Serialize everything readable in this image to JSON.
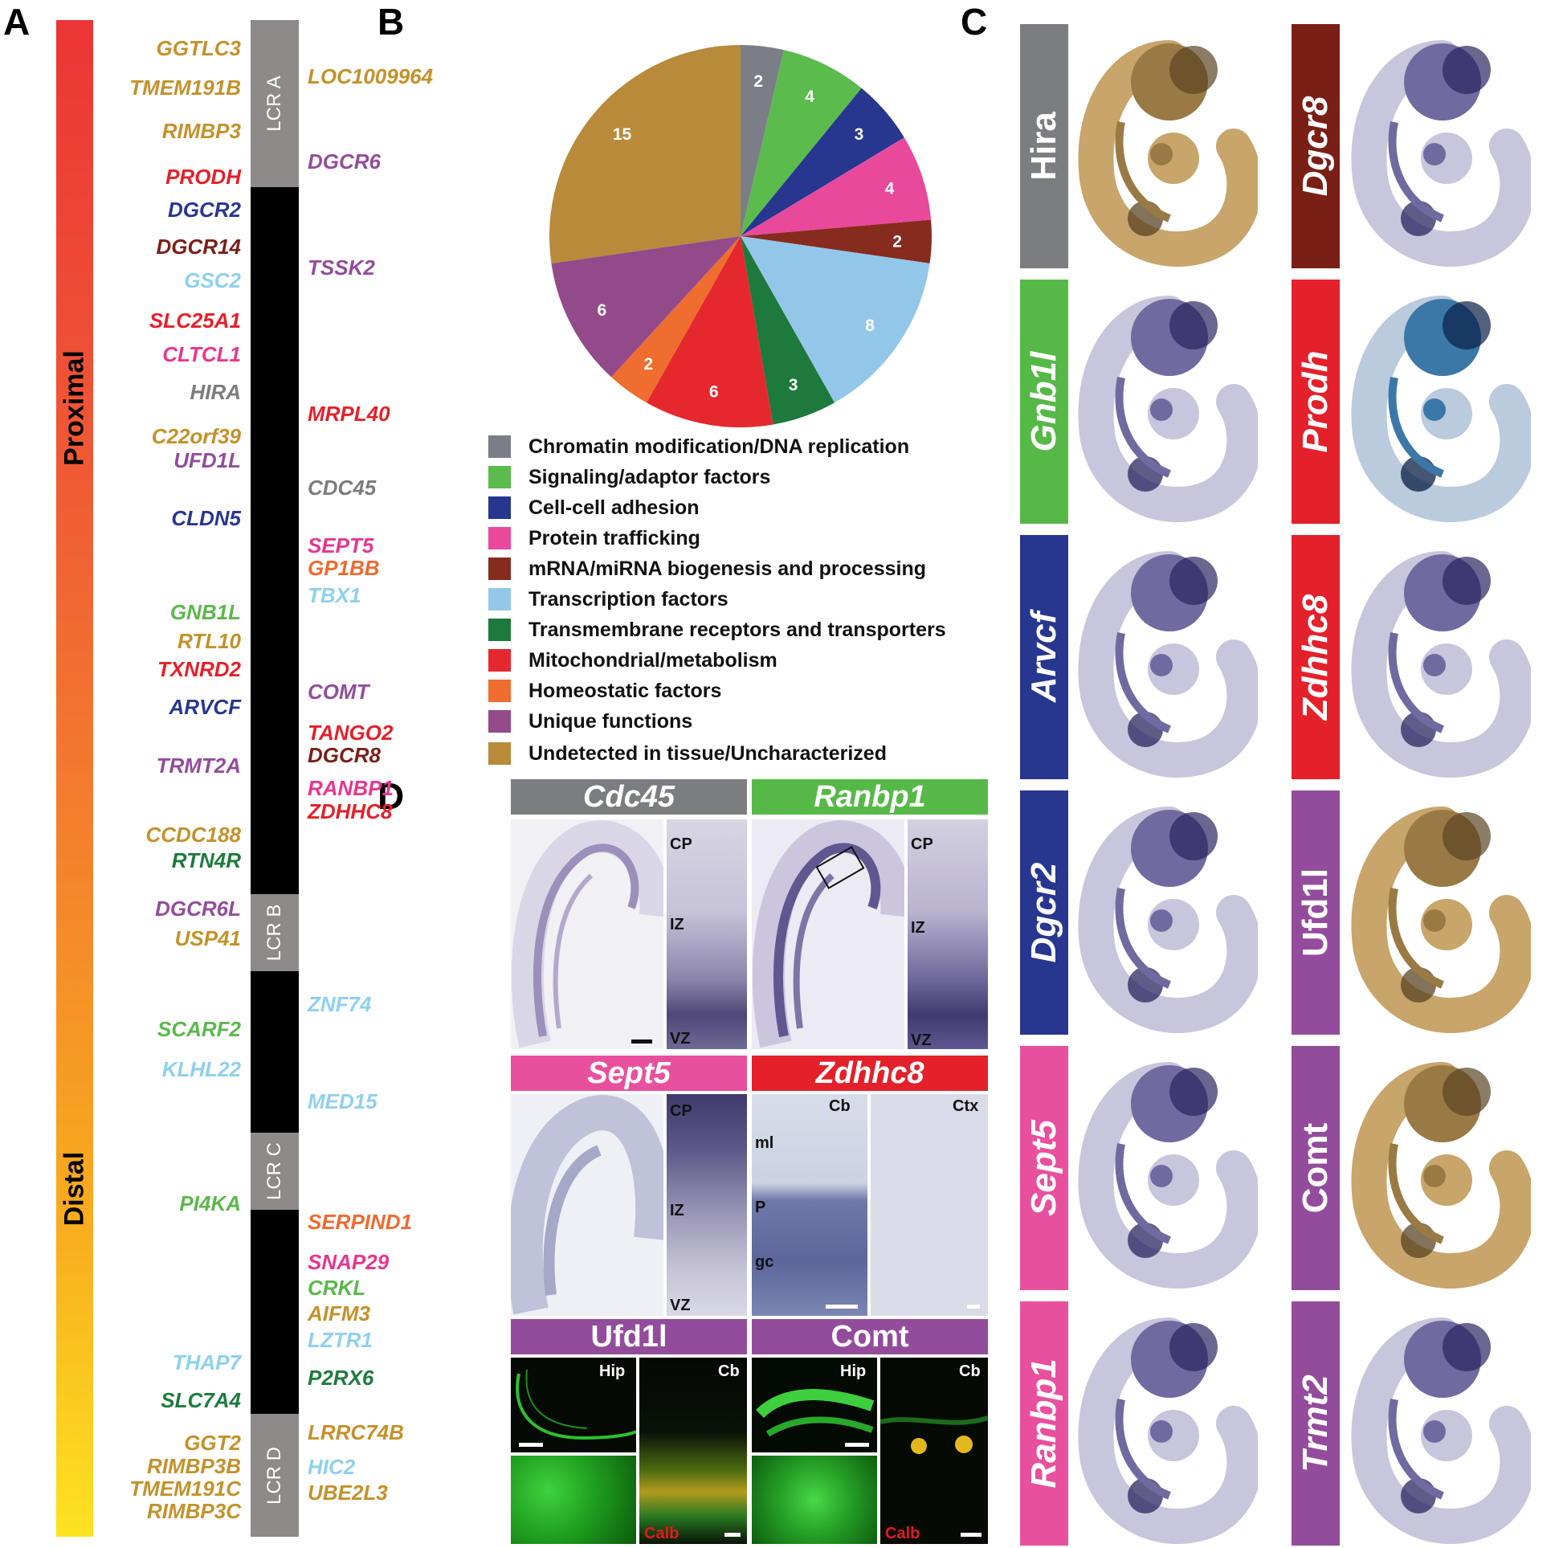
{
  "panels": {
    "a": "A",
    "b": "B",
    "c": "C",
    "d": "D"
  },
  "panel_a": {
    "gradient_top_label": "Proximal",
    "gradient_bottom_label": "Distal",
    "lcr": [
      "LCR A",
      "LCR B",
      "LCR C",
      "LCR D"
    ],
    "left_genes": [
      {
        "name": "GGTLC3",
        "color": "#c4912a"
      },
      {
        "name": "TMEM191B",
        "color": "#c4912a"
      },
      {
        "name": "RIMBP3",
        "color": "#c4912a"
      },
      {
        "name": "PRODH",
        "color": "#e4202a"
      },
      {
        "name": "DGCR2",
        "color": "#27368f"
      },
      {
        "name": "DGCR14",
        "color": "#7a1f16"
      },
      {
        "name": "GSC2",
        "color": "#8ed0ee"
      },
      {
        "name": "SLC25A1",
        "color": "#e4202a"
      },
      {
        "name": "CLTCL1",
        "color": "#e8358f"
      },
      {
        "name": "HIRA",
        "color": "#7c7c7c"
      },
      {
        "name": "C22orf39",
        "color": "#c4912a"
      },
      {
        "name": "UFD1L",
        "color": "#934c9c"
      },
      {
        "name": "CLDN5",
        "color": "#27368f"
      },
      {
        "name": "GNB1L",
        "color": "#5ab84b"
      },
      {
        "name": "RTL10",
        "color": "#c4912a"
      },
      {
        "name": "TXNRD2",
        "color": "#e4202a"
      },
      {
        "name": "ARVCF",
        "color": "#27368f"
      },
      {
        "name": "TRMT2A",
        "color": "#934c9c"
      },
      {
        "name": "CCDC188",
        "color": "#c4912a"
      },
      {
        "name": "RTN4R",
        "color": "#1e7a3c"
      },
      {
        "name": "DGCR6L",
        "color": "#934c9c"
      },
      {
        "name": "USP41",
        "color": "#c4912a"
      },
      {
        "name": "SCARF2",
        "color": "#5ab84b"
      },
      {
        "name": "KLHL22",
        "color": "#8ed0ee"
      },
      {
        "name": "PI4KA",
        "color": "#5ab84b"
      },
      {
        "name": "THAP7",
        "color": "#8ed0ee"
      },
      {
        "name": "SLC7A4",
        "color": "#1e7a3c"
      },
      {
        "name": "GGT2",
        "color": "#c4912a"
      },
      {
        "name": "RIMBP3B",
        "color": "#c4912a"
      },
      {
        "name": "TMEM191C",
        "color": "#c4912a"
      },
      {
        "name": "RIMBP3C",
        "color": "#c4912a"
      }
    ],
    "right_genes": [
      {
        "name": "LOC1009964",
        "color": "#c4912a"
      },
      {
        "name": "DGCR6",
        "color": "#934c9c"
      },
      {
        "name": "TSSK2",
        "color": "#934c9c"
      },
      {
        "name": "MRPL40",
        "color": "#e4202a"
      },
      {
        "name": "CDC45",
        "color": "#7c7c7c"
      },
      {
        "name": "SEPT5",
        "color": "#e8358f"
      },
      {
        "name": "GP1BB",
        "color": "#ef6a30"
      },
      {
        "name": "TBX1",
        "color": "#8ed0ee"
      },
      {
        "name": "COMT",
        "color": "#934c9c"
      },
      {
        "name": "TANGO2",
        "color": "#e4202a"
      },
      {
        "name": "DGCR8",
        "color": "#7a1f16"
      },
      {
        "name": "RANBP1",
        "color": "#e8358f"
      },
      {
        "name": "ZDHHC8",
        "color": "#e4202a"
      },
      {
        "name": "ZNF74",
        "color": "#8ed0ee"
      },
      {
        "name": "MED15",
        "color": "#8ed0ee"
      },
      {
        "name": "SERPIND1",
        "color": "#ef6a30"
      },
      {
        "name": "SNAP29",
        "color": "#e8358f"
      },
      {
        "name": "CRKL",
        "color": "#5ab84b"
      },
      {
        "name": "AIFM3",
        "color": "#c4912a"
      },
      {
        "name": "LZTR1",
        "color": "#8ed0ee"
      },
      {
        "name": "P2RX6",
        "color": "#1e7a3c"
      },
      {
        "name": "LRRC74B",
        "color": "#c4912a"
      },
      {
        "name": "HIC2",
        "color": "#8ed0ee"
      },
      {
        "name": "UBE2L3",
        "color": "#c4912a"
      }
    ]
  },
  "chart_data": {
    "type": "pie",
    "slices": [
      {
        "category": "Chromatin modification/DNA replication",
        "value": 2,
        "color": "#7b7e86"
      },
      {
        "category": "Signaling/adaptor factors",
        "value": 4,
        "color": "#5cbb4d"
      },
      {
        "category": "Cell-cell adhesion",
        "value": 3,
        "color": "#27368f"
      },
      {
        "category": "Protein trafficking",
        "value": 4,
        "color": "#e8499b"
      },
      {
        "category": "mRNA/miRNA biogenesis and processing",
        "value": 2,
        "color": "#862b1e"
      },
      {
        "category": "Transcription factors",
        "value": 8,
        "color": "#93c7ea"
      },
      {
        "category": "Transmembrane receptors and transporters",
        "value": 3,
        "color": "#1e7a3c"
      },
      {
        "category": "Mitochondrial/metabolism",
        "value": 6,
        "color": "#e5282e"
      },
      {
        "category": "Homeostatic factors",
        "value": 2,
        "color": "#ef6d2e"
      },
      {
        "category": "Unique functions",
        "value": 6,
        "color": "#934a8a"
      },
      {
        "category": "Undetected in tissue/Uncharacterized",
        "value": 15,
        "color": "#b88a3a"
      }
    ]
  },
  "panel_c": {
    "left_column": [
      {
        "gene": "Hira",
        "italic": false,
        "color": "#7c7d80"
      },
      {
        "gene": "Gnb1l",
        "italic": true,
        "color": "#56b947"
      },
      {
        "gene": "Arvcf",
        "italic": true,
        "color": "#27368f"
      },
      {
        "gene": "Dgcr2",
        "italic": true,
        "color": "#27368f"
      },
      {
        "gene": "Sept5",
        "italic": true,
        "color": "#e8509e"
      },
      {
        "gene": "Ranbp1",
        "italic": true,
        "color": "#e8509e"
      }
    ],
    "right_column": [
      {
        "gene": "Dgcr8",
        "italic": true,
        "color": "#7a1f16"
      },
      {
        "gene": "Prodh",
        "italic": true,
        "color": "#e4202a"
      },
      {
        "gene": "Zdhhc8",
        "italic": true,
        "color": "#e4202a"
      },
      {
        "gene": "Ufd1l",
        "italic": false,
        "color": "#934c9c"
      },
      {
        "gene": "Comt",
        "italic": false,
        "color": "#934c9c"
      },
      {
        "gene": "Trmt2",
        "italic": true,
        "color": "#934c9c"
      }
    ]
  },
  "panel_d": {
    "headers": [
      {
        "gene": "Cdc45",
        "italic": true,
        "color": "#7c7d80"
      },
      {
        "gene": "Ranbp1",
        "italic": true,
        "color": "#56b947"
      },
      {
        "gene": "Sept5",
        "italic": true,
        "color": "#e8509e"
      },
      {
        "gene": "Zdhhc8",
        "italic": true,
        "color": "#e4202a"
      },
      {
        "gene": "Ufd1l",
        "italic": false,
        "color": "#934c9c"
      },
      {
        "gene": "Comt",
        "italic": false,
        "color": "#934c9c"
      }
    ],
    "labels": {
      "cp": "CP",
      "iz": "IZ",
      "vz": "VZ",
      "cb": "Cb",
      "ctx": "Ctx",
      "ml": "ml",
      "p": "P",
      "gc": "gc",
      "hip": "Hip",
      "calb": "Calb"
    }
  }
}
